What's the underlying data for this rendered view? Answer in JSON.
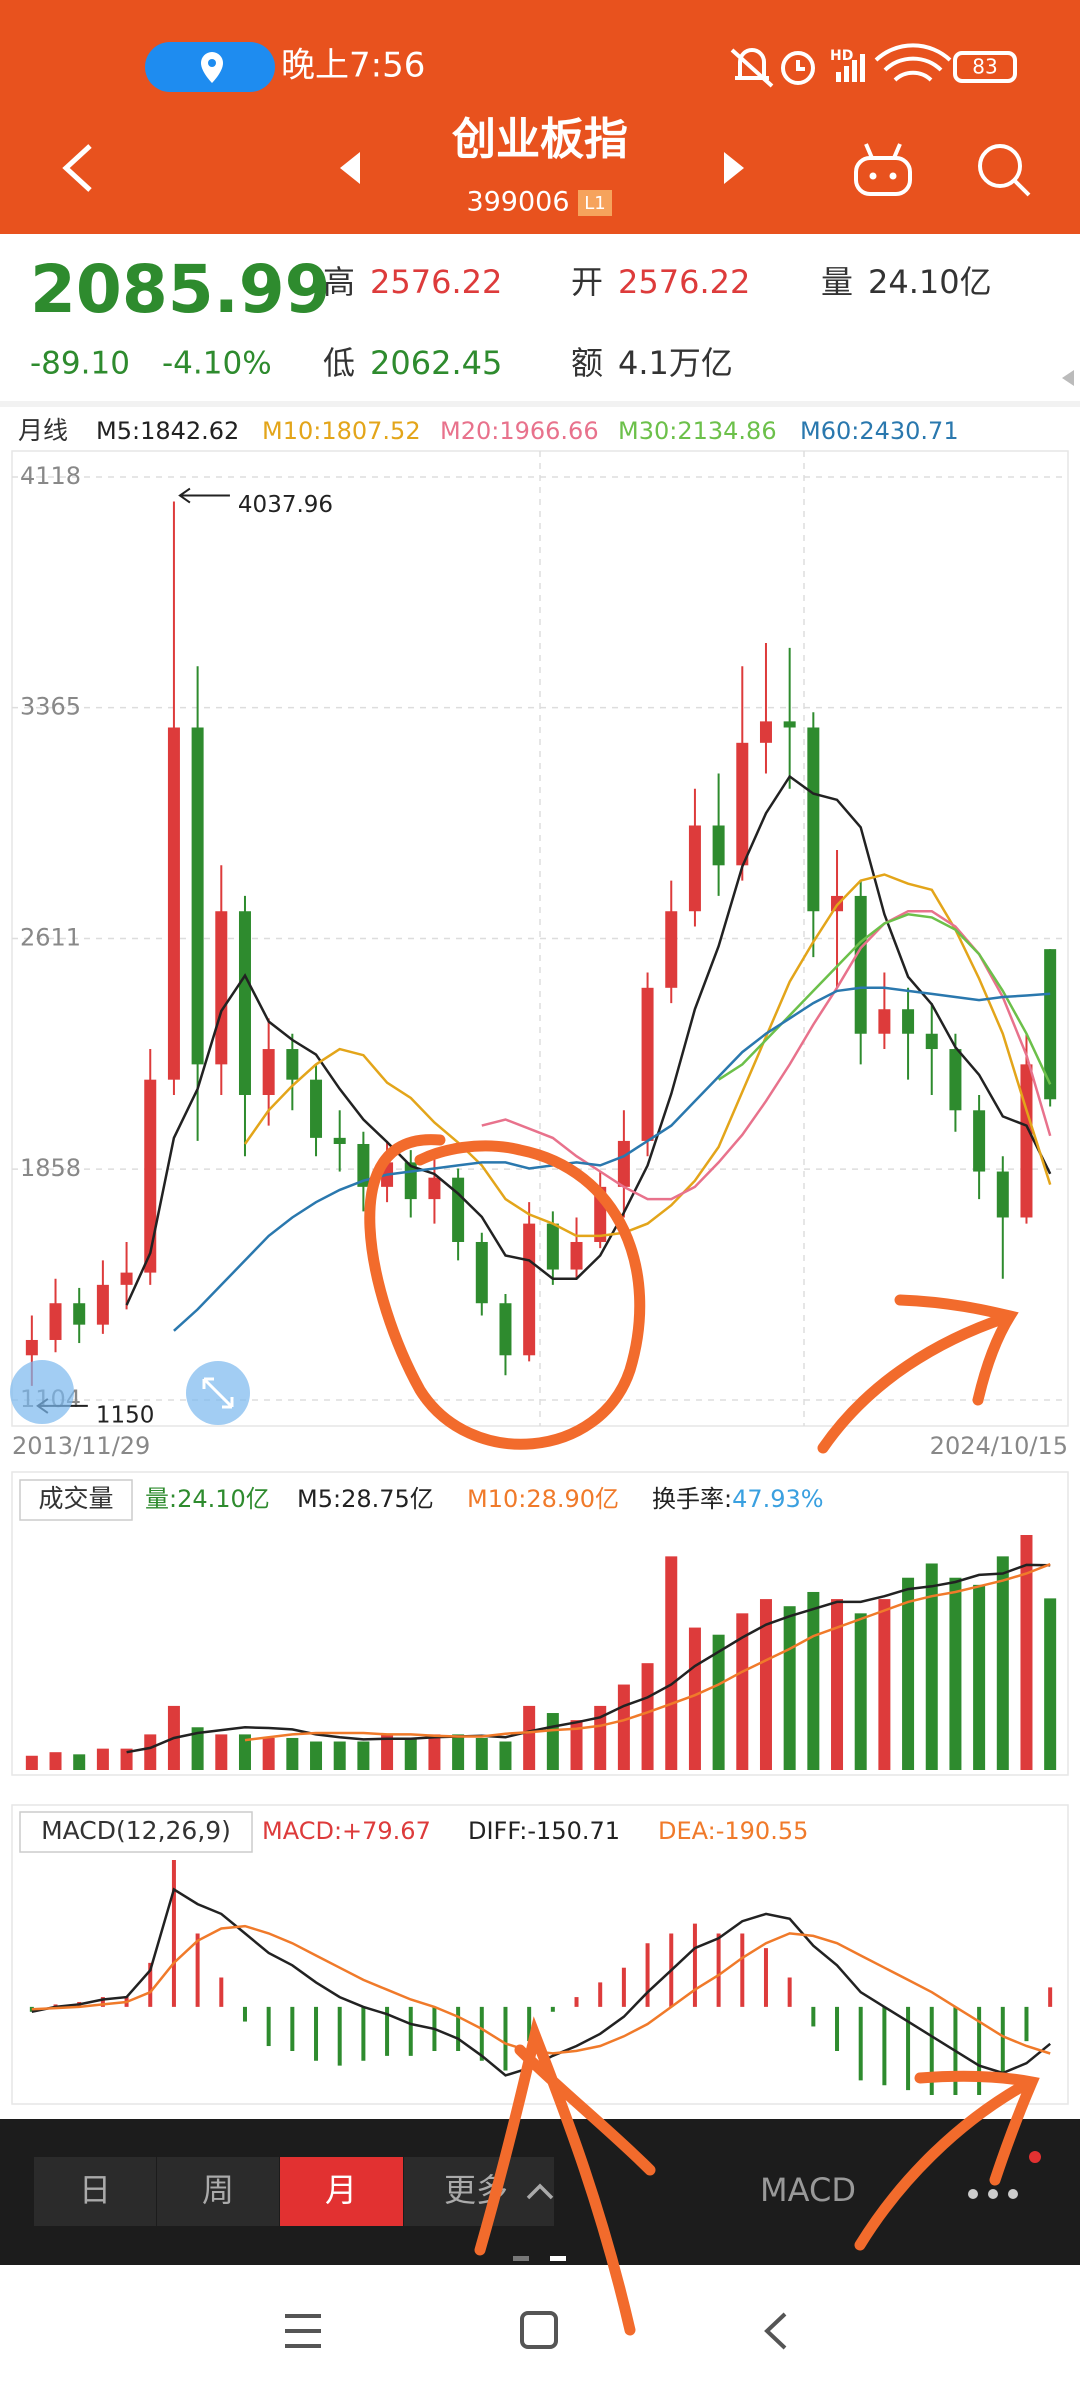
{
  "status_bar": {
    "time": "晚上7:56",
    "network": "HD",
    "battery": "83"
  },
  "header": {
    "title": "创业板指",
    "code": "399006",
    "badge": "L1"
  },
  "quote": {
    "price": "2085.99",
    "change": "-89.10",
    "change_pct": "-4.10%",
    "high_label": "高",
    "high": "2576.22",
    "open_label": "开",
    "open": "2576.22",
    "volume_label": "量",
    "volume": "24.10亿",
    "low_label": "低",
    "low": "2062.45",
    "amount_label": "额",
    "amount": "4.1万亿"
  },
  "kline": {
    "period_label": "月线",
    "ylim": [
      1104,
      4118
    ],
    "yticks": [
      4118,
      3365,
      2611,
      1858,
      1104
    ],
    "start_date": "2013/11/29",
    "end_date": "2024/10/15",
    "up_color": "#dd3b3b",
    "down_color": "#2e8b2e",
    "candles": {
      "open": [
        1250,
        1300,
        1420,
        1350,
        1480,
        1520,
        2150,
        3300,
        2200,
        2700,
        2100,
        2250,
        2150,
        1960,
        1940,
        1800,
        1880,
        1760,
        1830,
        1620,
        1420,
        1250,
        1680,
        1530,
        1620,
        1800,
        1950,
        2450,
        2700,
        2980,
        2850,
        3250,
        3320,
        3300,
        2700,
        2750,
        2300,
        2380,
        2300,
        2250,
        2050,
        1850,
        1700,
        2576.22
      ],
      "high": [
        1380,
        1500,
        1470,
        1560,
        1620,
        2250,
        4037.96,
        3500,
        2850,
        2750,
        2350,
        2300,
        2200,
        2050,
        1980,
        1950,
        1920,
        1900,
        1860,
        1650,
        1450,
        1750,
        1720,
        1700,
        1850,
        2050,
        2500,
        2800,
        3100,
        3150,
        3500,
        3576,
        3560,
        3350,
        2900,
        2800,
        2500,
        2450,
        2400,
        2300,
        2100,
        1900,
        2300,
        2576.22
      ],
      "low": [
        1150,
        1260,
        1290,
        1320,
        1400,
        1480,
        2100,
        1950,
        2100,
        1900,
        2000,
        2050,
        1900,
        1850,
        1720,
        1750,
        1700,
        1680,
        1560,
        1380,
        1184.91,
        1230,
        1480,
        1500,
        1600,
        1700,
        1900,
        2400,
        2650,
        2750,
        2800,
        3150,
        3100,
        2550,
        2450,
        2200,
        2250,
        2150,
        2100,
        1980,
        1760,
        1500,
        1680,
        2062.45
      ],
      "close": [
        1300,
        1420,
        1350,
        1480,
        1520,
        2150,
        3300,
        2200,
        2700,
        2100,
        2250,
        2150,
        1960,
        1940,
        1800,
        1880,
        1760,
        1830,
        1620,
        1420,
        1250,
        1680,
        1530,
        1620,
        1800,
        1950,
        2450,
        2700,
        2980,
        2850,
        3250,
        3320,
        3300,
        2700,
        2750,
        2300,
        2380,
        2300,
        2250,
        2050,
        1850,
        1700,
        2200,
        2085.99
      ]
    },
    "ma_series": [
      {
        "name": "M5:",
        "color": "#222222",
        "values": [
          null,
          null,
          null,
          null,
          1414,
          1584,
          1960,
          2120,
          2374,
          2490,
          2340,
          2280,
          2232,
          2120,
          2020,
          1946,
          1868,
          1842,
          1778,
          1702,
          1576,
          1560,
          1500,
          1500,
          1576,
          1716,
          1870,
          2104,
          2380,
          2586,
          2846,
          3020,
          3140,
          3084,
          3064,
          2974,
          2690,
          2486,
          2396,
          2256,
          2166,
          2030,
          2000,
          1842.62
        ]
      },
      {
        "name": "M10:",
        "color": "#e3a51a",
        "values": [
          null,
          null,
          null,
          null,
          null,
          null,
          null,
          null,
          null,
          1940,
          2050,
          2130,
          2200,
          2250,
          2230,
          2140,
          2090,
          2010,
          1945,
          1870,
          1760,
          1710,
          1680,
          1640,
          1640,
          1650,
          1680,
          1740,
          1820,
          1930,
          2110,
          2290,
          2470,
          2600,
          2720,
          2800,
          2820,
          2790,
          2770,
          2640,
          2480,
          2300,
          2050,
          1807.52
        ]
      },
      {
        "name": "M20:",
        "color": "#e8728c",
        "values": [
          null,
          null,
          null,
          null,
          null,
          null,
          null,
          null,
          null,
          null,
          null,
          null,
          null,
          null,
          null,
          null,
          null,
          null,
          null,
          2000,
          2020,
          1990,
          1960,
          1900,
          1850,
          1800,
          1760,
          1760,
          1800,
          1880,
          1970,
          2080,
          2200,
          2330,
          2450,
          2580,
          2660,
          2700,
          2700,
          2650,
          2560,
          2420,
          2230,
          1966.66
        ]
      },
      {
        "name": "M30:",
        "color": "#6cc04a",
        "values": [
          null,
          null,
          null,
          null,
          null,
          null,
          null,
          null,
          null,
          null,
          null,
          null,
          null,
          null,
          null,
          null,
          null,
          null,
          null,
          null,
          null,
          null,
          null,
          null,
          null,
          null,
          null,
          null,
          null,
          2150,
          2200,
          2280,
          2360,
          2440,
          2520,
          2600,
          2660,
          2690,
          2680,
          2640,
          2560,
          2440,
          2300,
          2134.86
        ]
      },
      {
        "name": "M60:",
        "color": "#2a78ae",
        "values": [
          null,
          null,
          null,
          null,
          null,
          null,
          1330,
          1400,
          1480,
          1560,
          1640,
          1700,
          1750,
          1790,
          1820,
          1840,
          1850,
          1860,
          1870,
          1880,
          1880,
          1860,
          1870,
          1880,
          1870,
          1900,
          1950,
          2000,
          2080,
          2160,
          2240,
          2300,
          2350,
          2400,
          2440,
          2450,
          2450,
          2440,
          2430,
          2420,
          2410,
          2420,
          2425,
          2430.71
        ]
      }
    ]
  },
  "volume_panel": {
    "title": "成交量",
    "bars": {
      "name": "量:",
      "color": "#2e8b2e",
      "legend_label": "24.10亿",
      "values": [
        2,
        2.5,
        2.2,
        3,
        3,
        5,
        9,
        6,
        5,
        5,
        4.5,
        4.5,
        4,
        4,
        4,
        5,
        4.5,
        5,
        5,
        4.5,
        4,
        9,
        8,
        7,
        9,
        12,
        15,
        30,
        20,
        19,
        22,
        24,
        23,
        25,
        24,
        22,
        24,
        27,
        29,
        27,
        26,
        30,
        33,
        24.1
      ]
    },
    "ma_series": [
      {
        "name": "M5:",
        "color": "#222222",
        "legend_label": "28.75亿",
        "values": [
          null,
          null,
          null,
          null,
          2.5,
          3.1,
          4.5,
          5.2,
          5.6,
          6,
          5.9,
          5.7,
          5,
          4.6,
          4.3,
          4.4,
          4.4,
          4.6,
          4.7,
          4.8,
          4.6,
          5.4,
          6.1,
          6.7,
          7.4,
          9,
          10.2,
          12,
          14.6,
          16.6,
          18.6,
          20.4,
          21.6,
          22.6,
          23.6,
          23.6,
          24.4,
          25.4,
          25.8,
          26.4,
          27.4,
          27.6,
          28.8,
          28.75
        ]
      },
      {
        "name": "M10:",
        "color": "#f07a2a",
        "legend_label": "28.90亿",
        "values": [
          null,
          null,
          null,
          null,
          null,
          null,
          null,
          null,
          null,
          4.2,
          4.6,
          5,
          5.2,
          5.2,
          5.2,
          5,
          5,
          4.8,
          4.7,
          4.7,
          5.1,
          5.3,
          5.6,
          5.8,
          6.2,
          7,
          8.1,
          9.3,
          10.5,
          12,
          13.8,
          15.4,
          17,
          18.8,
          20,
          21.2,
          22.4,
          23.6,
          24.4,
          25,
          25.8,
          26.6,
          27.6,
          28.9
        ]
      }
    ],
    "turnover_label": "换手率:",
    "turnover": "47.93%"
  },
  "macd_panel": {
    "title": "MACD(12,26,9)",
    "up_color": "#dd3b3b",
    "down_color": "#2e8b2e",
    "histogram": {
      "name": "MACD:",
      "color": "#dd3b3b",
      "legend_label": "+79.67",
      "values": [
        -20,
        10,
        20,
        40,
        40,
        180,
        600,
        300,
        120,
        -60,
        -160,
        -180,
        -220,
        -240,
        -220,
        -200,
        -200,
        -180,
        -180,
        -220,
        -260,
        -140,
        -20,
        40,
        100,
        160,
        260,
        300,
        340,
        300,
        300,
        240,
        120,
        -80,
        -180,
        -300,
        -320,
        -340,
        -360,
        -360,
        -360,
        -300,
        -140,
        79.67
      ]
    },
    "lines": [
      {
        "name": "DIFF:",
        "color": "#222222",
        "values": [
          -20,
          0,
          10,
          30,
          40,
          150,
          480,
          420,
          380,
          300,
          220,
          170,
          100,
          40,
          0,
          -30,
          -70,
          -90,
          -130,
          -200,
          -280,
          -250,
          -200,
          -160,
          -110,
          -40,
          60,
          150,
          240,
          280,
          350,
          380,
          360,
          250,
          170,
          60,
          0,
          -60,
          -120,
          -180,
          -240,
          -270,
          -230,
          -150.71
        ]
      },
      {
        "name": "DEA:",
        "color": "#f07a2a",
        "values": [
          -10,
          -5,
          0,
          10,
          20,
          60,
          180,
          270,
          320,
          330,
          300,
          260,
          210,
          160,
          110,
          70,
          30,
          0,
          -40,
          -90,
          -150,
          -180,
          -190,
          -180,
          -160,
          -120,
          -70,
          0,
          70,
          130,
          200,
          260,
          300,
          290,
          260,
          210,
          160,
          110,
          60,
          0,
          -60,
          -120,
          -160,
          -190.55
        ]
      }
    ]
  },
  "bottom_bar": {
    "tabs": [
      "日",
      "周",
      "月",
      "更多"
    ],
    "indicator": "MACD"
  }
}
